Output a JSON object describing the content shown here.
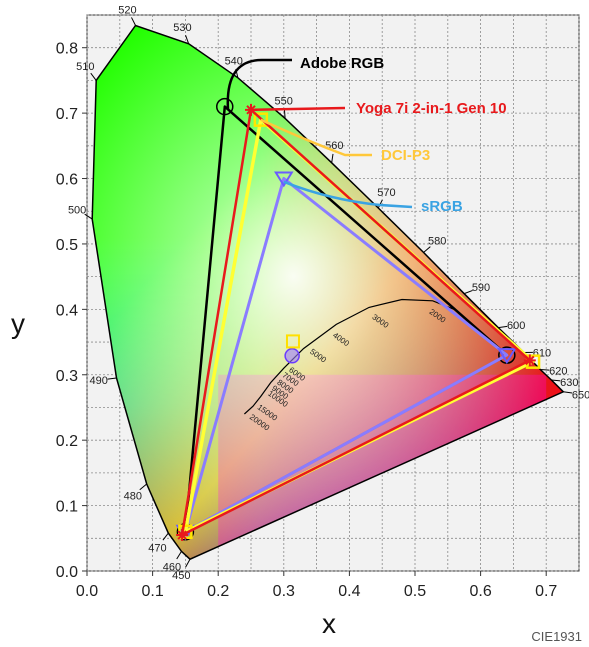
{
  "chart_data": {
    "type": "scatter",
    "footer": "CIE1931",
    "xlabel": "x",
    "ylabel": "y",
    "xlim": [
      0.0,
      0.75
    ],
    "ylim": [
      0.0,
      0.85
    ],
    "xticks": [
      "0.0",
      "0.1",
      "0.2",
      "0.3",
      "0.4",
      "0.5",
      "0.6",
      "0.7"
    ],
    "yticks": [
      "0.0",
      "0.1",
      "0.2",
      "0.3",
      "0.4",
      "0.5",
      "0.6",
      "0.7",
      "0.8"
    ],
    "grid": true,
    "locus": [
      {
        "nm": "450",
        "x": 0.157,
        "y": 0.018
      },
      {
        "nm": "460",
        "x": 0.144,
        "y": 0.03
      },
      {
        "nm": "470",
        "x": 0.124,
        "y": 0.058
      },
      {
        "nm": "480",
        "x": 0.091,
        "y": 0.133
      },
      {
        "nm": "490",
        "x": 0.045,
        "y": 0.295
      },
      {
        "nm": "500",
        "x": 0.008,
        "y": 0.538
      },
      {
        "nm": "510",
        "x": 0.014,
        "y": 0.75
      },
      {
        "nm": "520",
        "x": 0.074,
        "y": 0.834
      },
      {
        "nm": "530",
        "x": 0.155,
        "y": 0.806
      },
      {
        "nm": "540",
        "x": 0.23,
        "y": 0.754
      },
      {
        "nm": "550",
        "x": 0.302,
        "y": 0.692
      },
      {
        "nm": "560",
        "x": 0.373,
        "y": 0.624
      },
      {
        "nm": "570",
        "x": 0.444,
        "y": 0.555
      },
      {
        "nm": "580",
        "x": 0.513,
        "y": 0.487
      },
      {
        "nm": "590",
        "x": 0.575,
        "y": 0.424
      },
      {
        "nm": "600",
        "x": 0.627,
        "y": 0.372
      },
      {
        "nm": "610",
        "x": 0.666,
        "y": 0.334
      },
      {
        "nm": "620",
        "x": 0.691,
        "y": 0.308
      },
      {
        "nm": "630",
        "x": 0.708,
        "y": 0.292
      },
      {
        "nm": "650",
        "x": 0.726,
        "y": 0.274
      }
    ],
    "cct_labels": [
      "2000",
      "3000",
      "4000",
      "5000",
      "6000",
      "7000",
      "8000",
      "9000",
      "10000",
      "15000",
      "20000"
    ],
    "series": [
      {
        "name": "Adobe RGB",
        "color": "#000000",
        "marker": "circle",
        "points": [
          [
            0.64,
            0.33
          ],
          [
            0.21,
            0.71
          ],
          [
            0.15,
            0.06
          ]
        ]
      },
      {
        "name": "Yoga 7i 2-in-1 Gen 10",
        "color": "#e8191c",
        "marker": "star",
        "points": [
          [
            0.675,
            0.322
          ],
          [
            0.25,
            0.705
          ],
          [
            0.145,
            0.055
          ]
        ]
      },
      {
        "name": "DCI-P3",
        "color": "#ffc83a",
        "marker": "square",
        "points": [
          [
            0.68,
            0.32
          ],
          [
            0.265,
            0.69
          ],
          [
            0.15,
            0.06
          ]
        ]
      },
      {
        "name": "sRGB",
        "color": "#3aa3e3",
        "marker": "triangle",
        "points": [
          [
            0.64,
            0.33
          ],
          [
            0.3,
            0.6
          ],
          [
            0.15,
            0.06
          ]
        ]
      }
    ],
    "white_points": [
      [
        0.3127,
        0.329
      ],
      [
        0.314,
        0.351
      ]
    ]
  }
}
